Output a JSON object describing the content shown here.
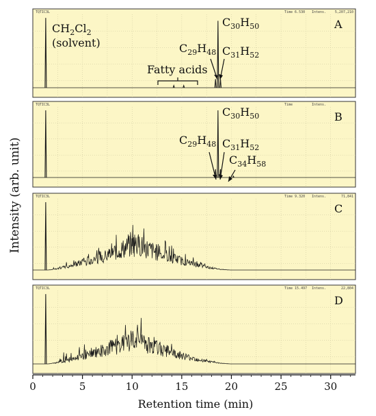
{
  "chart_data": {
    "type": "line",
    "xlabel": "Retention time (min)",
    "ylabel": "Intensity (arb. unit)",
    "xlim": [
      0,
      32.5
    ],
    "x_ticks": [
      0,
      5,
      10,
      15,
      20,
      25,
      30
    ],
    "grid": true,
    "colors": {
      "panel_bg": "#fcf6c6",
      "trace": "#1a1a1a",
      "grid": "#c7c29a"
    },
    "panels": [
      {
        "label": "A",
        "header": {
          "left": "TQTIC3L",
          "time": "Time  6.530",
          "intens": "Intens.",
          "value": "5,207,210"
        },
        "annotations": [
          {
            "text": "CH2Cl2",
            "sub": ""
          },
          {
            "text": "(solvent)"
          },
          {
            "text": "C30H50"
          },
          {
            "text": "C29H48"
          },
          {
            "text": "C31H52"
          },
          {
            "text": "Fatty acids"
          }
        ],
        "peaks": [
          {
            "x": 1.3,
            "y": 0.97
          },
          {
            "x": 18.4,
            "y": 0.12
          },
          {
            "x": 18.65,
            "y": 0.93
          },
          {
            "x": 18.9,
            "y": 0.12
          },
          {
            "x": 14.2,
            "y": 0.03
          },
          {
            "x": 15.2,
            "y": 0.03
          }
        ]
      },
      {
        "label": "B",
        "header": {
          "left": "TQTIC3L",
          "time": "Time",
          "intens": "Intens.",
          "value": ""
        },
        "annotations": [
          {
            "text": "C30H50"
          },
          {
            "text": "C29H48"
          },
          {
            "text": "C31H52"
          },
          {
            "text": "C34H58"
          }
        ],
        "peaks": [
          {
            "x": 1.3,
            "y": 0.97
          },
          {
            "x": 18.4,
            "y": 0.12
          },
          {
            "x": 18.65,
            "y": 0.97
          },
          {
            "x": 18.9,
            "y": 0.12
          },
          {
            "x": 20.2,
            "y": 0.02
          }
        ]
      },
      {
        "label": "C",
        "header": {
          "left": "TQTIC3L",
          "time": "Time  9.320",
          "intens": "Intens.",
          "value": "71,841"
        },
        "peaks": [
          {
            "x": 1.3,
            "y": 0.97
          }
        ],
        "hump": {
          "start": 1.5,
          "peak": 10.4,
          "end": 20.0,
          "height": 0.55
        }
      },
      {
        "label": "D",
        "header": {
          "left": "TQTIC3L",
          "time": "Time 15.497",
          "intens": "Intens.",
          "value": "22,804"
        },
        "peaks": [
          {
            "x": 1.3,
            "y": 0.97
          }
        ],
        "hump": {
          "start": 1.5,
          "peak": 10.3,
          "end": 20.0,
          "height": 0.5
        }
      }
    ]
  }
}
